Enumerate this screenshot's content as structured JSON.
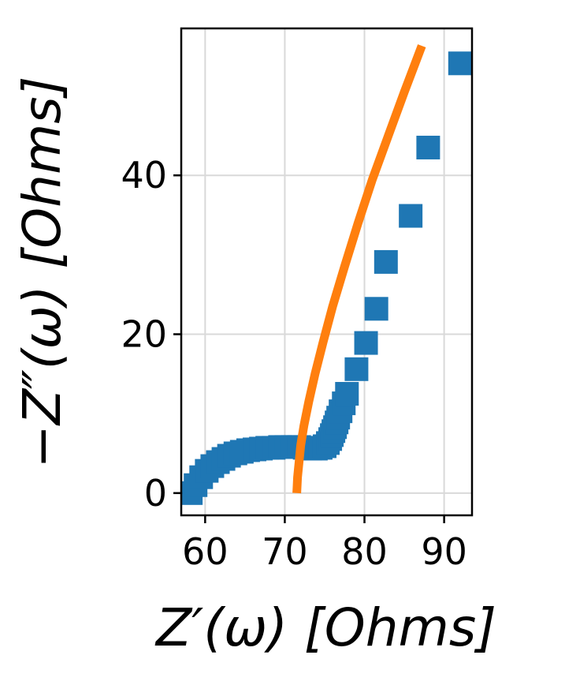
{
  "chart_data": {
    "type": "scatter",
    "xlabel": "Z′(ω) [Ohms]",
    "ylabel": "−Z″(ω) [Ohms]",
    "xlim": [
      57,
      93.5
    ],
    "ylim": [
      -2.8,
      58.5
    ],
    "xticks": [
      60,
      70,
      80,
      90
    ],
    "yticks": [
      0,
      20,
      40
    ],
    "xtick_labels": [
      "60",
      "70",
      "80",
      "90"
    ],
    "ytick_labels": [
      "0",
      "20",
      "40"
    ],
    "grid": true,
    "series": [
      {
        "kind": "scatter",
        "marker": "square",
        "color": "#1f77b4",
        "x": [
          58.2,
          58.8,
          59.5,
          60.2,
          60.9,
          61.6,
          62.3,
          63.0,
          63.8,
          64.6,
          65.4,
          66.2,
          67.0,
          67.8,
          68.6,
          69.4,
          70.2,
          71.0,
          71.8,
          72.5,
          73.2,
          73.9,
          74.5,
          75.0,
          75.4,
          75.7,
          75.9,
          76.1,
          76.3,
          76.5,
          76.7,
          77.0,
          77.4,
          77.8,
          79.0,
          80.2,
          81.5,
          82.7,
          85.8,
          88.0,
          92.0
        ],
        "y": [
          0.0,
          1.0,
          2.0,
          2.8,
          3.4,
          3.9,
          4.3,
          4.7,
          5.0,
          5.2,
          5.4,
          5.5,
          5.6,
          5.7,
          5.7,
          5.8,
          5.8,
          5.8,
          5.8,
          5.7,
          5.6,
          5.6,
          5.7,
          5.9,
          6.3,
          6.8,
          7.3,
          7.8,
          8.3,
          8.9,
          9.5,
          10.3,
          11.3,
          12.5,
          15.6,
          18.9,
          23.2,
          29.1,
          34.9,
          43.5,
          54.1
        ]
      },
      {
        "kind": "line",
        "color": "#ff7f0e",
        "x": [
          71.5,
          71.6,
          71.8,
          72.0,
          72.4,
          73.0,
          73.8,
          74.8,
          76.0,
          77.5,
          79.2,
          81.0,
          83.0,
          85.0,
          87.2
        ],
        "y": [
          0.0,
          2.0,
          4.0,
          6.0,
          8.5,
          11.5,
          15.0,
          19.0,
          23.5,
          28.5,
          34.0,
          39.5,
          45.0,
          50.5,
          56.3
        ]
      }
    ]
  }
}
